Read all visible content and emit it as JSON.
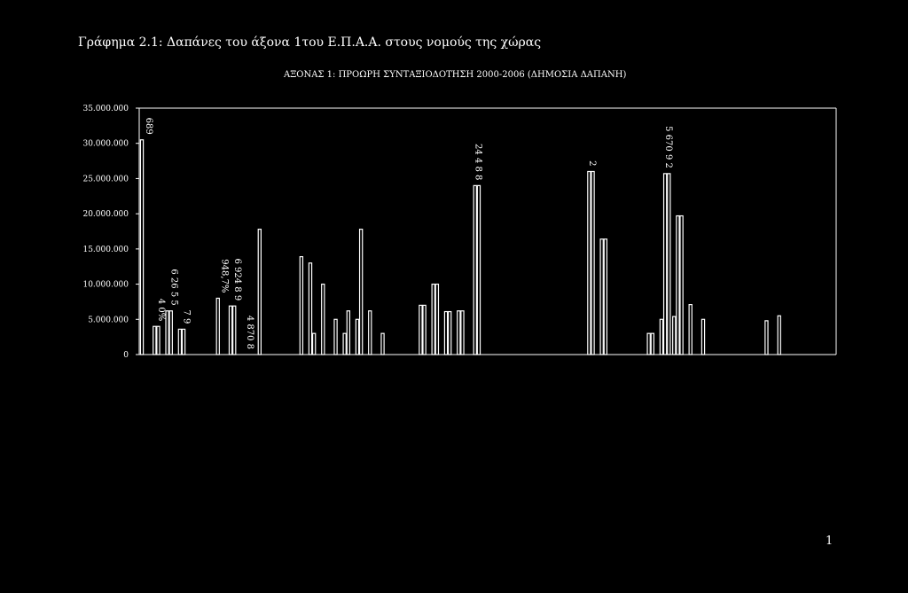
{
  "page": {
    "figure_caption": "Γράφημα 2.1: Δαπάνες του άξονα 1του Ε.Π.Α.Α. στους νομούς της χώρας",
    "page_number": "1"
  },
  "colors": {
    "background": "#000000",
    "foreground": "#ffffff"
  },
  "chart_data": {
    "type": "bar",
    "title": "ΑΞΟΝΑΣ 1: ΠΡΟΩΡΗ ΣΥΝΤΑΞΙΟΔΟΤΗΣΗ 2000-2006 (ΔΗΜΟΣΙΑ ΔΑΠΑΝΗ)",
    "xlabel": "",
    "ylabel": "",
    "ylim": [
      0,
      35000000
    ],
    "yticks": [
      0,
      5000000,
      10000000,
      15000000,
      20000000,
      25000000,
      30000000,
      35000000
    ],
    "ytick_labels": [
      "0",
      "5.000.000",
      "10.000.000",
      "15.000.000",
      "20.000.000",
      "25.000.000",
      "30.000.000",
      "35.000.000"
    ],
    "grid": false,
    "legend": "none",
    "category_count": 55,
    "series": [
      {
        "values": [
          30500000,
          4000000,
          6200000,
          3600000,
          0,
          0,
          8000000,
          6900000,
          0,
          0,
          0,
          0,
          0,
          0,
          0,
          0,
          3000000,
          5000000,
          6200000,
          3000000,
          0,
          0,
          7000000,
          10000000,
          6100000,
          6200000,
          0,
          0,
          0,
          0,
          0,
          0,
          0,
          0,
          0,
          0,
          0,
          0,
          0,
          0,
          3000000,
          5000000,
          5400000,
          0,
          0,
          0,
          0,
          0,
          0,
          0,
          0,
          0,
          0,
          0,
          0
        ]
      },
      {
        "values": [
          0,
          4000000,
          6200000,
          3600000,
          0,
          0,
          0,
          6900000,
          0,
          17800000,
          0,
          0,
          0,
          13000000,
          10000000,
          5000000,
          6200000,
          17800000,
          0,
          0,
          0,
          0,
          7000000,
          10000000,
          6100000,
          6200000,
          24000000,
          0,
          0,
          0,
          0,
          0,
          0,
          0,
          0,
          26000000,
          16400000,
          0,
          0,
          0,
          3000000,
          25700000,
          19700000,
          7100000,
          5000000,
          0,
          0,
          0,
          0,
          4800000,
          5500000,
          0,
          0,
          0,
          0
        ]
      },
      {
        "values": [
          0,
          0,
          0,
          0,
          0,
          0,
          0,
          0,
          0,
          0,
          0,
          0,
          13900000,
          3000000,
          0,
          0,
          0,
          0,
          0,
          0,
          0,
          0,
          0,
          0,
          0,
          0,
          24000000,
          0,
          0,
          0,
          0,
          0,
          0,
          0,
          0,
          26000000,
          16400000,
          0,
          0,
          0,
          0,
          25700000,
          19700000,
          0,
          0,
          0,
          0,
          0,
          0,
          0,
          0,
          0,
          0,
          0,
          0
        ]
      }
    ],
    "data_labels": [
      {
        "category": 0,
        "text": "689"
      },
      {
        "category": 1,
        "text": "4 0%"
      },
      {
        "category": 2,
        "text": "6 26 5 5"
      },
      {
        "category": 3,
        "text": "7 9"
      },
      {
        "category": 6,
        "text": "948,7%"
      },
      {
        "category": 7,
        "text": "6 924 8 9"
      },
      {
        "category": 8,
        "text": "4 870 8"
      },
      {
        "category": 26,
        "text": "24 4 8 8"
      },
      {
        "category": 35,
        "text": "2"
      },
      {
        "category": 41,
        "text": "5 670 9 2"
      }
    ]
  }
}
